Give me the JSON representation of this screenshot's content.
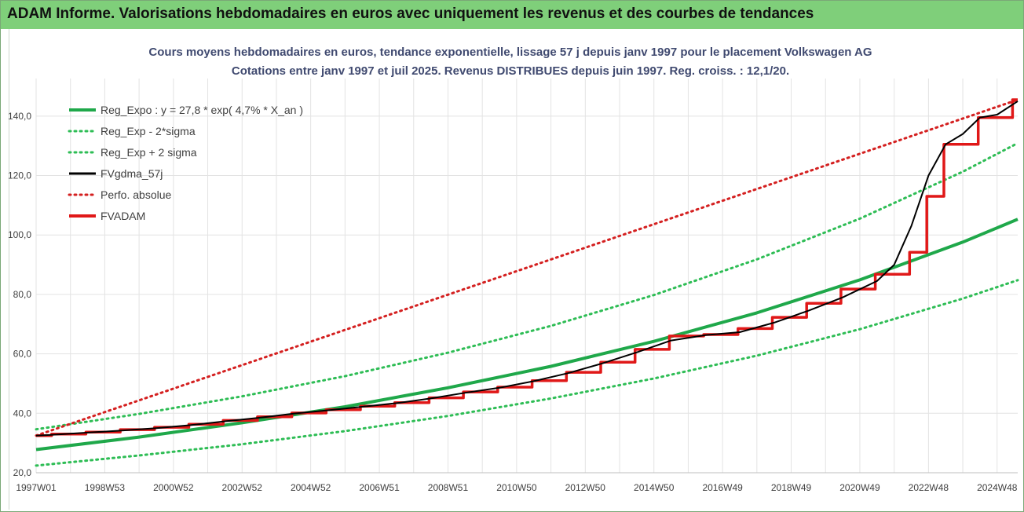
{
  "header": {
    "title": "ADAM Informe. Valorisations hebdomadaires en euros avec uniquement les revenus et des courbes de tendances"
  },
  "chart_data": {
    "type": "line",
    "title": "Cours moyens hebdomadaires en euros, tendance exponentielle, lissage 57 j depuis janv 1997 pour le placement Volkswagen AG",
    "subtitle": "Cotations entre janv 1997 et juil 2025. Revenus DISTRIBUES depuis juin 1997. Reg. croiss. : 12,1/20.",
    "xlabel": "",
    "ylabel": "",
    "ylim": [
      20,
      150
    ],
    "xlim": [
      1997.0,
      2025.6
    ],
    "y_ticks": [
      "20,0",
      "40,0",
      "60,0",
      "80,0",
      "100,0",
      "120,0",
      "140,0"
    ],
    "x_tick_labels": [
      "1997W01",
      "1998W53",
      "2000W52",
      "2002W52",
      "2004W52",
      "2006W51",
      "2008W51",
      "2010W50",
      "2012W50",
      "2014W50",
      "2016W49",
      "2018W49",
      "2020W49",
      "2022W48",
      "2024W48"
    ],
    "x_tick_years": [
      1997.0,
      1999.0,
      2001.0,
      2003.0,
      2005.0,
      2007.0,
      2009.0,
      2011.0,
      2013.0,
      2015.0,
      2017.0,
      2019.0,
      2021.0,
      2023.0,
      2025.0
    ],
    "grid": true,
    "legend_position": "top-left",
    "legend": [
      "Reg_Expo : y = 27,8 * exp( 4,7% *  X_an )",
      "Reg_Exp - 2*sigma",
      "Reg_Exp + 2 sigma",
      "FVgdma_57j",
      "Perfo. absolue",
      "FVADAM"
    ],
    "series": [
      {
        "name": "Reg_Expo : y = 27,8 * exp( 4,7% *  X_an )",
        "color": "#1fa84a",
        "style": "solid",
        "x": [
          1997.0,
          2000.0,
          2003.0,
          2006.0,
          2009.0,
          2012.0,
          2015.0,
          2018.0,
          2021.0,
          2024.0,
          2025.6
        ],
        "y": [
          27.8,
          32.0,
          36.8,
          42.2,
          48.6,
          55.8,
          64.2,
          73.8,
          84.9,
          97.6,
          105.3
        ]
      },
      {
        "name": "Reg_Exp - 2*sigma",
        "color": "#2ebd55",
        "style": "dotted",
        "x": [
          1997.0,
          2000.0,
          2003.0,
          2006.0,
          2009.0,
          2012.0,
          2015.0,
          2018.0,
          2021.0,
          2024.0,
          2025.6
        ],
        "y": [
          22.4,
          25.8,
          29.6,
          34.0,
          39.1,
          45.0,
          51.7,
          59.4,
          68.3,
          78.6,
          84.8
        ]
      },
      {
        "name": "Reg_Exp + 2 sigma",
        "color": "#2ebd55",
        "style": "dotted",
        "x": [
          1997.0,
          2000.0,
          2003.0,
          2006.0,
          2009.0,
          2012.0,
          2015.0,
          2018.0,
          2021.0,
          2024.0,
          2025.6
        ],
        "y": [
          34.6,
          39.8,
          45.7,
          52.5,
          60.4,
          69.4,
          79.8,
          91.8,
          105.5,
          121.3,
          130.9
        ]
      },
      {
        "name": "FVgdma_57j",
        "color": "#000000",
        "style": "solid",
        "x": [
          1997.0,
          1997.5,
          1998.5,
          1999.5,
          2000.5,
          2001.5,
          2002.5,
          2003.5,
          2004.5,
          2005.5,
          2006.5,
          2007.5,
          2008.5,
          2009.5,
          2010.5,
          2011.5,
          2012.5,
          2013.5,
          2014.5,
          2015.5,
          2016.5,
          2017.5,
          2018.5,
          2019.5,
          2020.5,
          2021.5,
          2022.0,
          2022.5,
          2023.0,
          2023.5,
          2024.0,
          2024.5,
          2025.0,
          2025.6
        ],
        "y": [
          32.5,
          32.8,
          33.5,
          34.2,
          35.0,
          36.0,
          37.3,
          38.5,
          39.9,
          41.0,
          42.2,
          43.4,
          45.0,
          46.9,
          48.6,
          50.8,
          53.5,
          56.8,
          60.5,
          64.5,
          66.3,
          67.3,
          70.5,
          74.5,
          79.0,
          84.5,
          90.0,
          103.0,
          120.0,
          130.5,
          134.0,
          139.5,
          140.5,
          145.0
        ]
      },
      {
        "name": "Perfo. absolue",
        "color": "#d42020",
        "style": "dotted",
        "x": [
          1997.0,
          2025.6
        ],
        "y": [
          32.5,
          145.5
        ]
      },
      {
        "name": "FVADAM",
        "color": "#e01818",
        "style": "solid-step",
        "x": [
          1997.0,
          1997.45,
          1998.45,
          1999.45,
          2000.45,
          2001.45,
          2002.45,
          2003.45,
          2004.45,
          2005.45,
          2006.45,
          2007.45,
          2008.45,
          2009.45,
          2010.45,
          2011.45,
          2012.45,
          2013.45,
          2014.45,
          2015.45,
          2016.45,
          2017.45,
          2018.45,
          2019.45,
          2020.45,
          2021.45,
          2022.45,
          2022.95,
          2023.45,
          2024.45,
          2025.45,
          2025.6
        ],
        "y": [
          32.5,
          33.0,
          33.7,
          34.5,
          35.3,
          36.3,
          37.6,
          38.8,
          40.1,
          41.2,
          42.4,
          43.6,
          45.2,
          47.2,
          48.8,
          51.0,
          53.8,
          57.2,
          61.5,
          66.0,
          66.5,
          68.5,
          72.3,
          77.0,
          81.8,
          86.8,
          94.2,
          113.0,
          130.5,
          139.5,
          145.5,
          145.5
        ]
      }
    ]
  }
}
